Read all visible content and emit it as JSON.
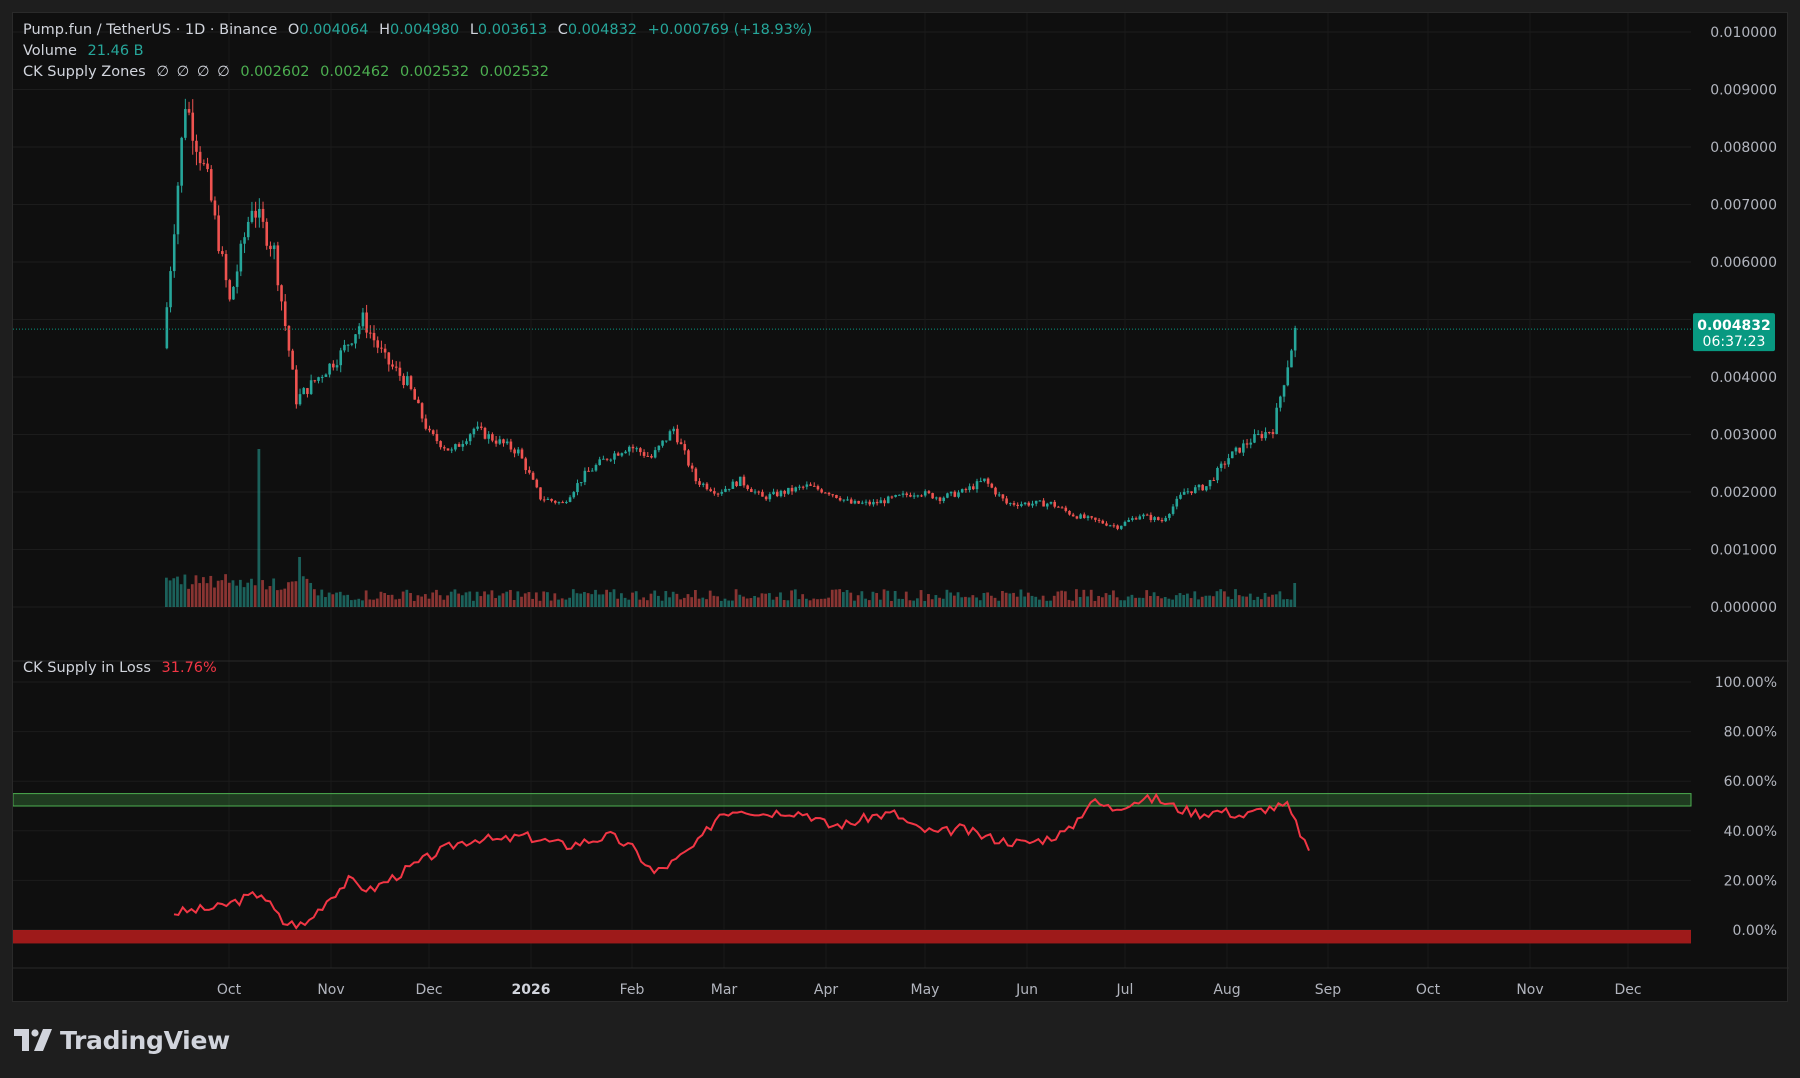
{
  "header": {
    "symbol": "Pump.fun / TetherUS · 1D · Binance",
    "ohlc": [
      {
        "k": "O",
        "v": "0.004064"
      },
      {
        "k": "H",
        "v": "0.004980"
      },
      {
        "k": "L",
        "v": "0.003613"
      },
      {
        "k": "C",
        "v": "0.004832"
      }
    ],
    "change": "+0.000769 (+18.93%)"
  },
  "volume_legend": {
    "label": "Volume",
    "value": "21.46 B"
  },
  "zones_legend": {
    "label": "CK Supply Zones",
    "symbols": [
      "∅",
      "∅",
      "∅",
      "∅"
    ],
    "values": [
      "0.002602",
      "0.002462",
      "0.002532",
      "0.002532"
    ]
  },
  "loss_legend": {
    "label": "CK Supply in Loss",
    "value": "31.76%"
  },
  "price_badge": {
    "price": "0.004832",
    "countdown": "06:37:23"
  },
  "brand": {
    "name": "TradingView"
  },
  "colors": {
    "up": "#26a69a",
    "down": "#ef5350",
    "accent": "#089981",
    "loss_line": "#f23645",
    "zone_green": "#4caf50",
    "zone_red": "#b71c1c"
  },
  "chart_data": [
    {
      "type": "candlestick",
      "title": "Pump.fun / TetherUS · 1D · Binance",
      "y_ticks": [
        "0.000000",
        "0.001000",
        "0.002000",
        "0.003000",
        "0.004000",
        "0.005000",
        "0.006000",
        "0.007000",
        "0.008000",
        "0.009000",
        "0.010000"
      ],
      "ylim": [
        0,
        0.01
      ],
      "x_ticks": [
        "Oct",
        "Nov",
        "Dec",
        "2026",
        "Feb",
        "Mar",
        "Apr",
        "May",
        "Jun",
        "Jul",
        "Aug",
        "Sep",
        "Oct",
        "Nov",
        "Dec"
      ],
      "last_price": 0.004832,
      "series": [
        {
          "name": "close (approx, sampled every ~5 days)",
          "values": [
            0.0045,
            0.0088,
            0.0074,
            0.0053,
            0.007,
            0.0062,
            0.0036,
            0.004,
            0.0044,
            0.005,
            0.0043,
            0.0039,
            0.003,
            0.0027,
            0.0031,
            0.0029,
            0.0027,
            0.0019,
            0.0018,
            0.0023,
            0.0026,
            0.0028,
            0.0026,
            0.0031,
            0.0022,
            0.002,
            0.0022,
            0.0019,
            0.002,
            0.0021,
            0.002,
            0.0018,
            0.0018,
            0.0019,
            0.002,
            0.0019,
            0.002,
            0.0022,
            0.0018,
            0.0018,
            0.0018,
            0.0016,
            0.0015,
            0.0014,
            0.0016,
            0.0015,
            0.002,
            0.0021,
            0.0026,
            0.0029,
            0.0031,
            0.0048
          ]
        }
      ]
    },
    {
      "type": "bar",
      "title": "Volume",
      "series": [
        {
          "name": "Volume",
          "values": [
            21.46
          ]
        }
      ]
    },
    {
      "type": "line",
      "title": "CK Supply in Loss",
      "y_ticks": [
        "0.00%",
        "20.00%",
        "40.00%",
        "60.00%",
        "80.00%",
        "100.00%"
      ],
      "ylim": [
        0,
        100
      ],
      "bands": [
        {
          "from": 50,
          "to": 55,
          "color": "green"
        },
        {
          "from": -3,
          "to": 0,
          "color": "red"
        }
      ],
      "series": [
        {
          "name": "CK Supply in Loss",
          "values": [
            7,
            8,
            9,
            12,
            15,
            3,
            2,
            12,
            20,
            16,
            21,
            26,
            31,
            35,
            37,
            36,
            38,
            36,
            34,
            36,
            38,
            33,
            23,
            28,
            35,
            47,
            49,
            47,
            48,
            47,
            42,
            43,
            46,
            47,
            41,
            39,
            41,
            38,
            36,
            35,
            37,
            40,
            52,
            49,
            52,
            53,
            49,
            47,
            48,
            46,
            49,
            50,
            32
          ]
        }
      ]
    }
  ]
}
